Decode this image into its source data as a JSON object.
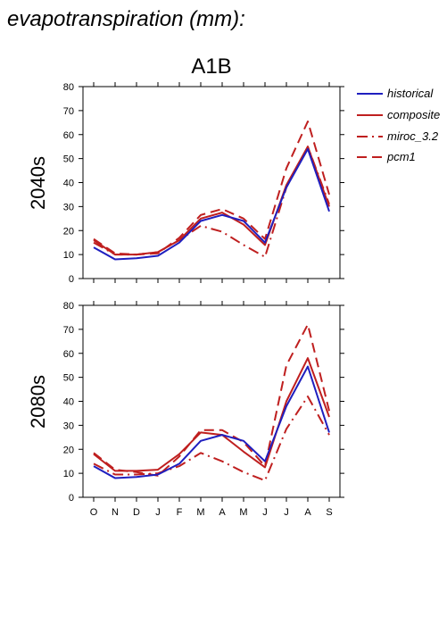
{
  "title": "evapotranspiration (mm):",
  "scenario": "A1B",
  "colors": {
    "historical": "#1f1fbf",
    "model": "#bf1f1f",
    "axis": "#000000"
  },
  "legend": [
    {
      "label": "historical",
      "style": "solid",
      "color": "#1f1fbf"
    },
    {
      "label": "composite",
      "style": "solid",
      "color": "#bf1f1f"
    },
    {
      "label": "miroc_3.2",
      "style": "dashdot",
      "color": "#bf1f1f"
    },
    {
      "label": "pcm1",
      "style": "dashed",
      "color": "#bf1f1f"
    }
  ],
  "chart_data": [
    {
      "type": "line",
      "row_label": "2040s",
      "categories": [
        "O",
        "N",
        "D",
        "J",
        "F",
        "M",
        "A",
        "M",
        "J",
        "J",
        "A",
        "S"
      ],
      "ylim": [
        0,
        80
      ],
      "yticks": [
        0,
        10,
        20,
        30,
        40,
        50,
        60,
        70,
        80
      ],
      "series": [
        {
          "name": "historical",
          "style": "solid",
          "color": "#1f1fbf",
          "values": [
            13,
            8,
            8.5,
            9.5,
            15,
            24,
            26.5,
            24,
            15,
            38,
            54,
            28
          ]
        },
        {
          "name": "composite",
          "style": "solid",
          "color": "#bf1f1f",
          "values": [
            16,
            10,
            10,
            11,
            16,
            25,
            27.5,
            22.5,
            14,
            39,
            55,
            30
          ]
        },
        {
          "name": "miroc_3.2",
          "style": "dashdot",
          "color": "#bf1f1f",
          "values": [
            15,
            10,
            10,
            11,
            16,
            22,
            19.5,
            14,
            9,
            38,
            55,
            31
          ]
        },
        {
          "name": "pcm1",
          "style": "dashed",
          "color": "#bf1f1f",
          "values": [
            16.5,
            10.5,
            10,
            10.5,
            17,
            26.5,
            29,
            25,
            16.5,
            46,
            65.5,
            35
          ]
        }
      ]
    },
    {
      "type": "line",
      "row_label": "2080s",
      "categories": [
        "O",
        "N",
        "D",
        "J",
        "F",
        "M",
        "A",
        "M",
        "J",
        "J",
        "A",
        "S"
      ],
      "ylim": [
        0,
        80
      ],
      "yticks": [
        0,
        10,
        20,
        30,
        40,
        50,
        60,
        70,
        80
      ],
      "series": [
        {
          "name": "historical",
          "style": "solid",
          "color": "#1f1fbf",
          "values": [
            13,
            8,
            8.5,
            9.5,
            14,
            23.5,
            26,
            23.5,
            15,
            38,
            54.5,
            27
          ]
        },
        {
          "name": "composite",
          "style": "solid",
          "color": "#bf1f1f",
          "values": [
            18,
            11,
            11,
            11.5,
            18,
            27,
            26,
            19,
            12.5,
            40,
            58,
            33.5
          ]
        },
        {
          "name": "miroc_3.2",
          "style": "dashdot",
          "color": "#bf1f1f",
          "values": [
            14,
            9.5,
            9.5,
            10,
            13,
            18.5,
            15,
            10.5,
            7,
            28.5,
            42,
            26
          ]
        },
        {
          "name": "pcm1",
          "style": "dashed",
          "color": "#bf1f1f",
          "values": [
            18.5,
            11.5,
            10.5,
            9,
            17,
            28,
            28,
            23,
            13,
            55,
            72,
            36
          ]
        }
      ]
    }
  ]
}
